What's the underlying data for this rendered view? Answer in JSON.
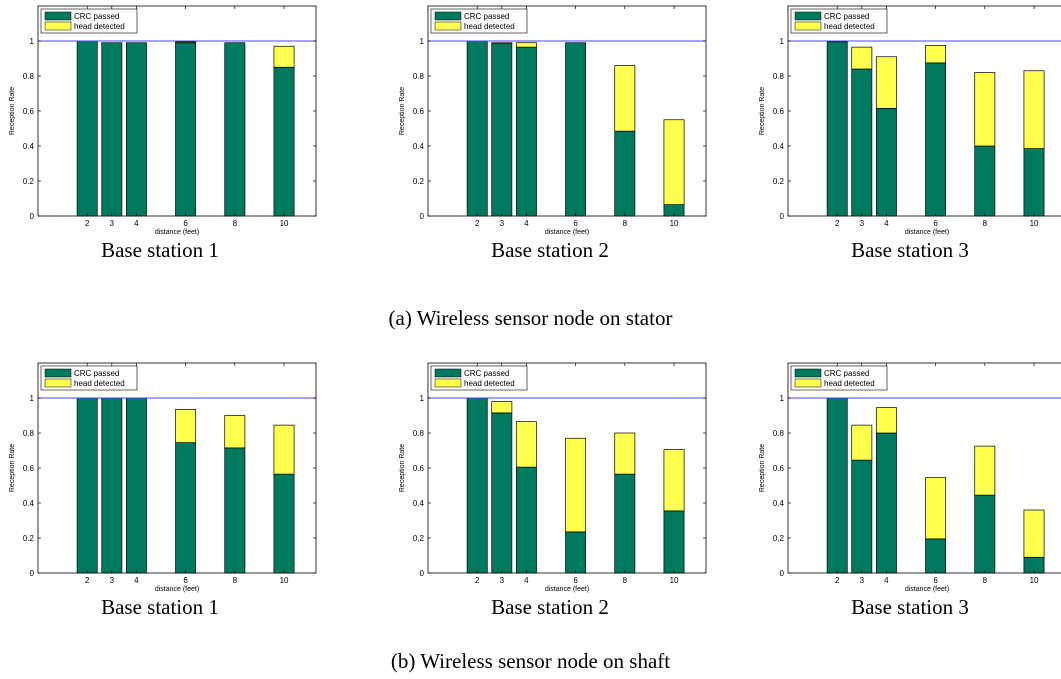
{
  "colors": {
    "crc": "#007a5e",
    "head": "#ffff4d",
    "ref_line": "#4444ff"
  },
  "captions": {
    "top": "(a) Wireless sensor node on stator",
    "bottom": "(b) Wireless sensor node on shaft"
  },
  "chart_data": [
    {
      "type": "bar",
      "stacked": true,
      "title": "Base station 1",
      "xlabel": "distance (feet)",
      "ylabel": "Reception Rate",
      "x": [
        2,
        3,
        4,
        6,
        8,
        10
      ],
      "xlim": [
        0,
        11.3
      ],
      "ylim": [
        0,
        1.2
      ],
      "yticks": [
        0,
        0.2,
        0.4,
        0.6,
        0.8,
        1
      ],
      "legend": "top-left",
      "reference_line": 1,
      "series": [
        {
          "name": "CRC passed",
          "values": [
            1.0,
            0.99,
            0.99,
            0.99,
            0.99,
            0.85
          ]
        },
        {
          "name": "head detected",
          "values": [
            0.0,
            0.0,
            0.0,
            0.005,
            0.0,
            0.12
          ]
        }
      ]
    },
    {
      "type": "bar",
      "stacked": true,
      "title": "Base station 2",
      "xlabel": "distance (feet)",
      "ylabel": "Reception Rate",
      "x": [
        2,
        3,
        4,
        6,
        8,
        10
      ],
      "xlim": [
        0,
        11.3
      ],
      "ylim": [
        0,
        1.2
      ],
      "yticks": [
        0,
        0.2,
        0.4,
        0.6,
        0.8,
        1
      ],
      "legend": "top-left",
      "reference_line": 1,
      "series": [
        {
          "name": "CRC passed",
          "values": [
            1.0,
            0.985,
            0.965,
            0.99,
            0.485,
            0.065
          ]
        },
        {
          "name": "head detected",
          "values": [
            0.0,
            0.005,
            0.025,
            0.0,
            0.375,
            0.485
          ]
        }
      ]
    },
    {
      "type": "bar",
      "stacked": true,
      "title": "Base station 3",
      "xlabel": "distance (feet)",
      "ylabel": "Reception Rate",
      "x": [
        2,
        3,
        4,
        6,
        8,
        10
      ],
      "xlim": [
        0,
        11.3
      ],
      "ylim": [
        0,
        1.2
      ],
      "yticks": [
        0,
        0.2,
        0.4,
        0.6,
        0.8,
        1
      ],
      "legend": "top-left",
      "reference_line": 1,
      "series": [
        {
          "name": "CRC passed",
          "values": [
            0.995,
            0.84,
            0.615,
            0.875,
            0.4,
            0.385
          ]
        },
        {
          "name": "head detected",
          "values": [
            0.0,
            0.125,
            0.295,
            0.1,
            0.42,
            0.445
          ]
        }
      ]
    },
    {
      "type": "bar",
      "stacked": true,
      "title": "Base station 1",
      "xlabel": "distance (feet)",
      "ylabel": "Reception Rate",
      "x": [
        2,
        3,
        4,
        6,
        8,
        10
      ],
      "xlim": [
        0,
        11.3
      ],
      "ylim": [
        0,
        1.2
      ],
      "yticks": [
        0,
        0.2,
        0.4,
        0.6,
        0.8,
        1
      ],
      "legend": "top-left",
      "reference_line": 1,
      "series": [
        {
          "name": "CRC passed",
          "values": [
            1.0,
            1.0,
            1.0,
            0.745,
            0.715,
            0.565
          ]
        },
        {
          "name": "head detected",
          "values": [
            0.0,
            0.0,
            0.0,
            0.19,
            0.185,
            0.28
          ]
        }
      ]
    },
    {
      "type": "bar",
      "stacked": true,
      "title": "Base station 2",
      "xlabel": "distance (feet)",
      "ylabel": "Reception Rate",
      "x": [
        2,
        3,
        4,
        6,
        8,
        10
      ],
      "xlim": [
        0,
        11.3
      ],
      "ylim": [
        0,
        1.2
      ],
      "yticks": [
        0,
        0.2,
        0.4,
        0.6,
        0.8,
        1
      ],
      "legend": "top-left",
      "reference_line": 1,
      "series": [
        {
          "name": "CRC passed",
          "values": [
            1.0,
            0.915,
            0.605,
            0.235,
            0.565,
            0.355
          ]
        },
        {
          "name": "head detected",
          "values": [
            0.0,
            0.065,
            0.26,
            0.535,
            0.235,
            0.35
          ]
        }
      ]
    },
    {
      "type": "bar",
      "stacked": true,
      "title": "Base station 3",
      "xlabel": "distance (feet)",
      "ylabel": "Reception Rate",
      "x": [
        2,
        3,
        4,
        6,
        8,
        10
      ],
      "xlim": [
        0,
        11.3
      ],
      "ylim": [
        0,
        1.2
      ],
      "yticks": [
        0,
        0.2,
        0.4,
        0.6,
        0.8,
        1
      ],
      "legend": "top-left",
      "reference_line": 1,
      "series": [
        {
          "name": "CRC passed",
          "values": [
            1.0,
            0.645,
            0.8,
            0.195,
            0.445,
            0.09
          ]
        },
        {
          "name": "head detected",
          "values": [
            0.0,
            0.2,
            0.145,
            0.35,
            0.28,
            0.27
          ]
        }
      ]
    }
  ]
}
